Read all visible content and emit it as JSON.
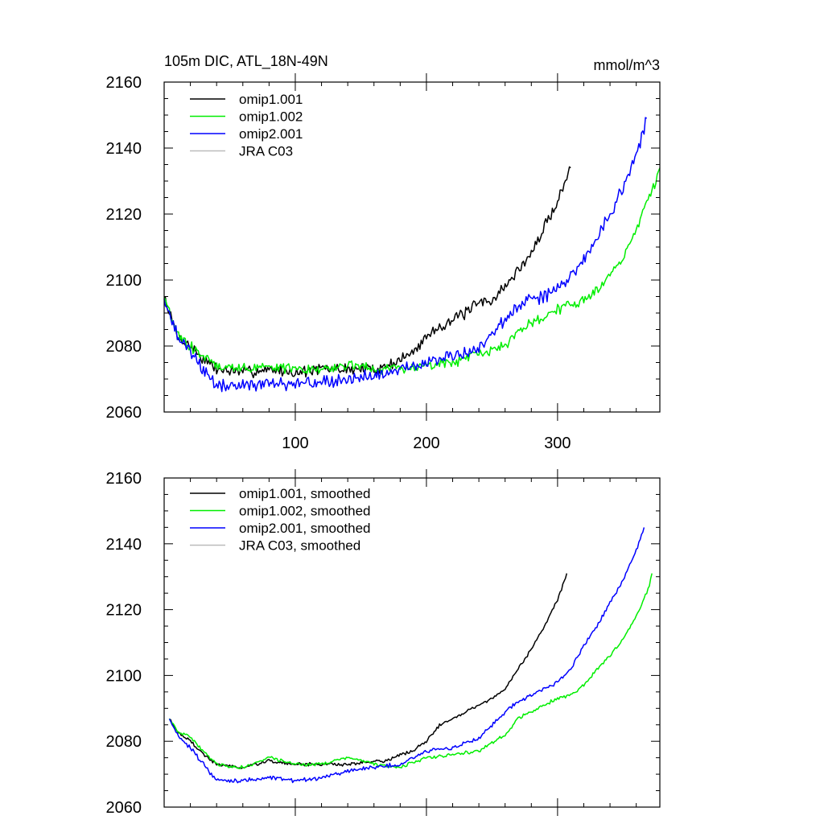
{
  "chart_data": [
    {
      "type": "line",
      "title": "105m DIC, ATL_18N-49N",
      "units": "mmol/m^3",
      "xlim": [
        0,
        378
      ],
      "ylim": [
        2060,
        2160
      ],
      "xticks": [
        100,
        200,
        300
      ],
      "xtick_labels": [
        "100",
        "200",
        "300"
      ],
      "yticks": [
        2060,
        2080,
        2100,
        2120,
        2140,
        2160
      ],
      "ytick_labels": [
        "2060",
        "2080",
        "2100",
        "2120",
        "2140",
        "2160"
      ],
      "legend": [
        "omip1.001",
        "omip1.002",
        "omip2.001",
        "JRA C03"
      ],
      "series": [
        {
          "name": "omip1.001",
          "color": "#000000",
          "x": [
            0,
            10,
            20,
            30,
            40,
            60,
            80,
            100,
            120,
            140,
            160,
            170,
            180,
            190,
            200,
            210,
            220,
            230,
            240,
            250,
            260,
            270,
            280,
            290,
            300,
            310
          ],
          "y": [
            2095,
            2083,
            2080,
            2076,
            2073,
            2072,
            2073,
            2072,
            2073,
            2073,
            2073,
            2074,
            2076,
            2078,
            2083,
            2086,
            2088,
            2090,
            2093,
            2094,
            2098,
            2103,
            2108,
            2116,
            2124,
            2134
          ],
          "noise": 1.4
        },
        {
          "name": "omip1.002",
          "color": "#00ee00",
          "x": [
            0,
            10,
            20,
            30,
            40,
            60,
            80,
            100,
            120,
            140,
            160,
            180,
            200,
            220,
            240,
            260,
            270,
            280,
            290,
            300,
            310,
            320,
            330,
            340,
            350,
            360,
            370,
            378
          ],
          "y": [
            2095,
            2083,
            2080,
            2077,
            2074,
            2073,
            2074,
            2073,
            2073,
            2074,
            2073,
            2073,
            2074,
            2075,
            2077,
            2080,
            2084,
            2087,
            2089,
            2091,
            2093,
            2094,
            2097,
            2102,
            2107,
            2115,
            2125,
            2134
          ],
          "noise": 1.3
        },
        {
          "name": "omip2.001",
          "color": "#0000ff",
          "x": [
            0,
            10,
            20,
            30,
            40,
            60,
            80,
            100,
            120,
            140,
            160,
            180,
            200,
            220,
            240,
            260,
            270,
            280,
            290,
            300,
            310,
            320,
            330,
            340,
            350,
            360,
            368
          ],
          "y": [
            2095,
            2083,
            2078,
            2073,
            2068,
            2068,
            2069,
            2068,
            2069,
            2070,
            2071,
            2073,
            2075,
            2077,
            2079,
            2088,
            2092,
            2094,
            2095,
            2098,
            2101,
            2106,
            2113,
            2120,
            2128,
            2138,
            2149
          ],
          "noise": 1.5
        },
        {
          "name": "JRA C03",
          "color": "#bbbbbb",
          "x": [],
          "y": [],
          "noise": 0
        }
      ]
    },
    {
      "type": "line",
      "xlim": [
        0,
        378
      ],
      "ylim": [
        2060,
        2160
      ],
      "yticks": [
        2060,
        2080,
        2100,
        2120,
        2140,
        2160
      ],
      "ytick_labels": [
        "2060",
        "2080",
        "2100",
        "2120",
        "2140",
        "2160"
      ],
      "legend": [
        "omip1.001, smoothed",
        "omip1.002, smoothed",
        "omip2.001, smoothed",
        "JRA C03, smoothed"
      ],
      "series": [
        {
          "name": "omip1.001, smoothed",
          "color": "#000000",
          "x": [
            4,
            10,
            20,
            30,
            40,
            60,
            80,
            100,
            120,
            140,
            160,
            170,
            180,
            190,
            200,
            210,
            220,
            230,
            240,
            250,
            260,
            270,
            280,
            290,
            300,
            307
          ],
          "y": [
            2087,
            2083,
            2080,
            2076,
            2073,
            2072,
            2074,
            2073,
            2073,
            2073,
            2074,
            2074,
            2076,
            2077,
            2080,
            2085,
            2087,
            2089,
            2091,
            2093,
            2096,
            2102,
            2108,
            2115,
            2123,
            2131
          ],
          "noise": 0.4
        },
        {
          "name": "omip1.002, smoothed",
          "color": "#00ee00",
          "x": [
            4,
            10,
            20,
            30,
            40,
            60,
            80,
            100,
            120,
            140,
            160,
            180,
            200,
            220,
            240,
            260,
            270,
            280,
            290,
            300,
            310,
            320,
            330,
            340,
            350,
            360,
            370,
            372
          ],
          "y": [
            2087,
            2083,
            2081,
            2077,
            2073,
            2072,
            2075,
            2073,
            2073,
            2075,
            2073,
            2072,
            2075,
            2076,
            2077,
            2082,
            2087,
            2089,
            2091,
            2093,
            2094,
            2097,
            2102,
            2106,
            2111,
            2118,
            2127,
            2131
          ],
          "noise": 0.4
        },
        {
          "name": "omip2.001, smoothed",
          "color": "#0000ff",
          "x": [
            4,
            10,
            20,
            30,
            40,
            60,
            80,
            100,
            120,
            140,
            160,
            180,
            200,
            220,
            240,
            260,
            270,
            280,
            290,
            300,
            310,
            320,
            330,
            340,
            350,
            360,
            366
          ],
          "y": [
            2087,
            2082,
            2078,
            2073,
            2068,
            2068,
            2069,
            2068,
            2069,
            2071,
            2072,
            2073,
            2077,
            2078,
            2081,
            2089,
            2092,
            2094,
            2096,
            2098,
            2102,
            2109,
            2115,
            2122,
            2129,
            2138,
            2145
          ],
          "noise": 0.5
        },
        {
          "name": "JRA C03, smoothed",
          "color": "#bbbbbb",
          "x": [],
          "y": [],
          "noise": 0
        }
      ]
    }
  ]
}
